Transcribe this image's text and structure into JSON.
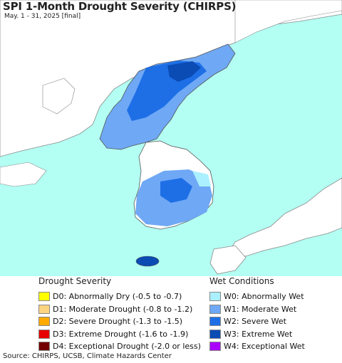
{
  "header": {
    "title": "SPI 1-Month Drought Severity (CHIRPS)",
    "subtitle": "May. 1 - 31, 2025 [final]"
  },
  "map": {
    "sea_color": "#b3fff3",
    "land_color": "#ffffff",
    "border_color": "#888888"
  },
  "legend": {
    "drought": {
      "title": "Drought Severity",
      "items": [
        {
          "code": "D0",
          "label": "D0: Abnormally Dry (-0.5 to -0.7)",
          "color": "#ffff00"
        },
        {
          "code": "D1",
          "label": "D1: Moderate Drought (-0.8 to -1.2)",
          "color": "#fcd37f"
        },
        {
          "code": "D2",
          "label": "D2: Severe Drought (-1.3 to -1.5)",
          "color": "#ffaa00"
        },
        {
          "code": "D3",
          "label": "D3: Extreme Drought (-1.6 to -1.9)",
          "color": "#e60000"
        },
        {
          "code": "D4",
          "label": "D4: Exceptional Drought (-2.0 or less)",
          "color": "#730000"
        }
      ]
    },
    "wet": {
      "title": "Wet Conditions",
      "items": [
        {
          "code": "W0",
          "label": "W0: Abnormally Wet",
          "color": "#aaf0ff"
        },
        {
          "code": "W1",
          "label": "W1: Moderate Wet",
          "color": "#6fa8f5"
        },
        {
          "code": "W2",
          "label": "W2: Severe Wet",
          "color": "#1e6fe6"
        },
        {
          "code": "W3",
          "label": "W3: Extreme Wet",
          "color": "#0a4bb4"
        },
        {
          "code": "W4",
          "label": "W4: Exceptional Wet",
          "color": "#aa00ff"
        }
      ]
    }
  },
  "footer": {
    "source": "Source: CHIRPS, UCSB, Climate Hazards Center"
  }
}
